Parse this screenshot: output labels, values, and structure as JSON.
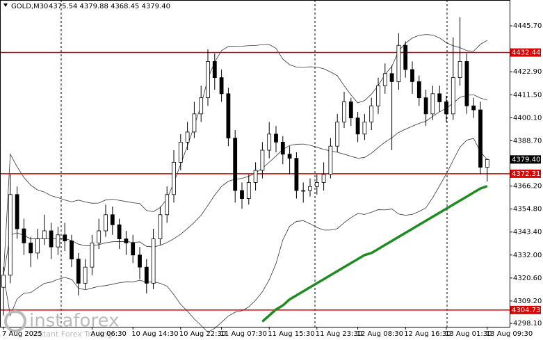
{
  "chart_data": {
    "type": "candlestick",
    "header": {
      "symbol": "GOLD,M30",
      "ohlc": "4375.54 4379.88 4368.45 4379.40"
    },
    "branding": {
      "logo": "instaforex",
      "tagline": "Instant Forex Trading"
    },
    "ylim": [
      4296.4,
      4458.5
    ],
    "yticks": [
      {
        "value": 4445.7,
        "label": "4445.70"
      },
      {
        "value": 4422.9,
        "label": "4422.90"
      },
      {
        "value": 4411.5,
        "label": "4411.50"
      },
      {
        "value": 4400.1,
        "label": "4400.10"
      },
      {
        "value": 4388.7,
        "label": "4388.70"
      },
      {
        "value": 4366.2,
        "label": "4366.20"
      },
      {
        "value": 4354.8,
        "label": "4354.80"
      },
      {
        "value": 4343.4,
        "label": "4343.40"
      },
      {
        "value": 4332,
        "label": "4332.00"
      },
      {
        "value": 4320.6,
        "label": "4320.60"
      },
      {
        "value": 4309.2,
        "label": "4309.20"
      },
      {
        "value": 4298.1,
        "label": "4298.10"
      }
    ],
    "levels": [
      {
        "value": 4432.44,
        "label": "4432.44",
        "color": "#e00000"
      },
      {
        "value": 4372.31,
        "label": "4372.31",
        "color": "#e00000"
      },
      {
        "value": 4304.73,
        "label": "4304.73",
        "color": "#e00000"
      }
    ],
    "current_price": {
      "value": 4379.4,
      "label": "4379.40"
    },
    "categories": [
      "7 Aug 2025",
      null,
      null,
      null,
      null,
      null,
      null,
      null,
      null,
      null,
      null,
      null,
      null,
      "Aug 06:30",
      null,
      null,
      null,
      null,
      null,
      "10 Aug 14:30",
      null,
      null,
      null,
      null,
      null,
      null,
      "10 Aug 22:30",
      null,
      null,
      null,
      null,
      null,
      "11 Aug 07:30",
      null,
      null,
      null,
      null,
      null,
      null,
      "11 Aug 15:30",
      null,
      null,
      null,
      null,
      null,
      null,
      "11 Aug 23:30",
      null,
      null,
      null,
      null,
      null,
      "12 Aug 08:30",
      null,
      null,
      null,
      null,
      null,
      null,
      "12 Aug 16:30",
      null,
      null,
      null,
      null,
      null,
      "13 Aug 01:30",
      null,
      null,
      null,
      null,
      null,
      "13 Aug 09:30"
    ],
    "open": [
      4316,
      4322,
      4362,
      4345,
      4338,
      4333,
      4340,
      4344,
      4336,
      4342,
      4339,
      4330,
      4318,
      4326,
      4338,
      4344,
      4352,
      4347,
      4340,
      4338,
      4332,
      4326,
      4318,
      4340,
      4352,
      4362,
      4378,
      4388,
      4393,
      4402,
      4410,
      4428,
      4420,
      4412,
      4390,
      4364,
      4360,
      4368,
      4374,
      4384,
      4392,
      4388,
      4382,
      4380,
      4364,
      4364,
      4366,
      4368,
      4372,
      4386,
      4398,
      4408,
      4400,
      4392,
      4398,
      4406,
      4416,
      4422,
      4418,
      4436,
      4424,
      4418,
      4410,
      4402,
      4412,
      4408,
      4402,
      4420,
      4428,
      4406,
      4404,
      4375.54
    ],
    "high": [
      4326,
      4372,
      4366,
      4350,
      4341,
      4345,
      4352,
      4348,
      4346,
      4348,
      4342,
      4333,
      4330,
      4342,
      4350,
      4357,
      4356,
      4350,
      4344,
      4342,
      4336,
      4330,
      4345,
      4356,
      4366,
      4384,
      4392,
      4398,
      4408,
      4416,
      4434,
      4432,
      4424,
      4415,
      4394,
      4368,
      4372,
      4378,
      4388,
      4398,
      4396,
      4391,
      4386,
      4383,
      4368,
      4370,
      4372,
      4378,
      4390,
      4402,
      4413,
      4410,
      4403,
      4402,
      4410,
      4420,
      4427,
      4426,
      4442,
      4438,
      4428,
      4421,
      4414,
      4416,
      4416,
      4411,
      4440,
      4450,
      4432,
      4410,
      4408,
      4379.88
    ],
    "low": [
      4302,
      4318,
      4340,
      4332,
      4326,
      4330,
      4337,
      4330,
      4332,
      4334,
      4326,
      4312,
      4315,
      4322,
      4335,
      4341,
      4342,
      4335,
      4332,
      4328,
      4320,
      4313,
      4315,
      4337,
      4348,
      4358,
      4374,
      4384,
      4390,
      4398,
      4406,
      4414,
      4408,
      4386,
      4358,
      4355,
      4357,
      4364,
      4370,
      4380,
      4383,
      4377,
      4372,
      4360,
      4358,
      4361,
      4362,
      4364,
      4370,
      4383,
      4395,
      4396,
      4388,
      4389,
      4394,
      4402,
      4412,
      4384,
      4414,
      4420,
      4412,
      4406,
      4396,
      4399,
      4403,
      4398,
      4399,
      4416,
      4402,
      4400,
      4372,
      4368.45
    ],
    "close": [
      4322,
      4362,
      4345,
      4338,
      4333,
      4340,
      4344,
      4336,
      4342,
      4339,
      4330,
      4318,
      4326,
      4338,
      4344,
      4352,
      4347,
      4340,
      4338,
      4332,
      4326,
      4318,
      4340,
      4352,
      4362,
      4378,
      4388,
      4393,
      4402,
      4410,
      4428,
      4420,
      4412,
      4390,
      4364,
      4360,
      4368,
      4374,
      4384,
      4392,
      4388,
      4382,
      4380,
      4364,
      4364,
      4366,
      4368,
      4372,
      4386,
      4398,
      4408,
      4400,
      4392,
      4398,
      4406,
      4416,
      4422,
      4418,
      4436,
      4424,
      4418,
      4410,
      4402,
      4412,
      4408,
      4402,
      4420,
      4428,
      4406,
      4404,
      4375.54,
      4379.4
    ],
    "moving_average": {
      "color": "#1f8c1f",
      "values": [
        null,
        null,
        null,
        null,
        null,
        null,
        null,
        null,
        null,
        null,
        null,
        null,
        null,
        null,
        null,
        null,
        null,
        null,
        null,
        null,
        null,
        null,
        null,
        null,
        null,
        null,
        null,
        null,
        null,
        null,
        null,
        null,
        null,
        null,
        null,
        null,
        null,
        null,
        4299,
        4302,
        4305,
        4307,
        4310,
        4312,
        4314,
        4316,
        4318,
        4320,
        4322,
        4324,
        4326,
        4328,
        4330,
        4332,
        4333,
        4335,
        4337,
        4339,
        4341,
        4343,
        4345,
        4347,
        4349,
        4351,
        4353,
        4355,
        4357,
        4359,
        4361,
        4363,
        4365,
        4366.2
      ]
    }
  }
}
